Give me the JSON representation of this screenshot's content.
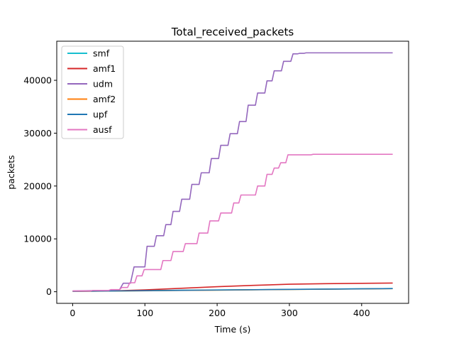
{
  "chart_data": {
    "type": "line",
    "title": "Total_received_packets",
    "xlabel": "Time (s)",
    "ylabel": "packets",
    "xlim": [
      -22,
      465
    ],
    "ylim": [
      -2200,
      47400
    ],
    "xticks": [
      0,
      100,
      200,
      300,
      400
    ],
    "yticks": [
      0,
      10000,
      20000,
      30000,
      40000
    ],
    "grid": false,
    "legend_position": "top-left",
    "series": [
      {
        "name": "smf",
        "color": "#17becf",
        "x": [
          0,
          100,
          200,
          300,
          443
        ],
        "y": [
          80,
          220,
          330,
          430,
          600
        ]
      },
      {
        "name": "amf1",
        "color": "#d62728",
        "x": [
          0,
          60,
          100,
          150,
          200,
          250,
          300,
          350,
          400,
          443
        ],
        "y": [
          100,
          180,
          350,
          650,
          950,
          1200,
          1420,
          1520,
          1590,
          1640
        ]
      },
      {
        "name": "udm",
        "color": "#9467bd",
        "x": [
          0,
          50,
          65,
          70,
          75,
          80,
          85,
          100,
          103,
          113,
          116,
          126,
          129,
          136,
          139,
          148,
          151,
          162,
          165,
          175,
          178,
          189,
          192,
          202,
          205,
          215,
          218,
          228,
          231,
          240,
          243,
          253,
          256,
          266,
          269,
          276,
          279,
          289,
          292,
          302,
          305,
          311,
          314,
          320,
          323,
          330,
          443
        ],
        "y": [
          150,
          250,
          400,
          1600,
          1600,
          1600,
          4700,
          4700,
          8600,
          8600,
          10600,
          10600,
          12700,
          12700,
          15200,
          15200,
          17500,
          17500,
          20300,
          20300,
          22500,
          22500,
          25200,
          25200,
          27700,
          27700,
          29900,
          29900,
          32200,
          32200,
          35300,
          35300,
          37600,
          37600,
          39900,
          39900,
          41800,
          41800,
          43600,
          43600,
          45000,
          45000,
          45100,
          45100,
          45200,
          45200,
          45200
        ]
      },
      {
        "name": "amf2",
        "color": "#ff7f0e",
        "x": [
          0,
          100,
          200,
          300,
          443
        ],
        "y": [
          60,
          180,
          300,
          420,
          580
        ]
      },
      {
        "name": "upf",
        "color": "#1f77b4",
        "x": [
          0,
          100,
          200,
          300,
          443
        ],
        "y": [
          70,
          200,
          320,
          440,
          600
        ]
      },
      {
        "name": "ausf",
        "color": "#e377c2",
        "x": [
          0,
          25,
          28,
          50,
          53,
          65,
          68,
          76,
          79,
          86,
          89,
          96,
          99,
          108,
          111,
          122,
          125,
          136,
          139,
          153,
          156,
          172,
          175,
          187,
          190,
          202,
          205,
          220,
          223,
          230,
          233,
          253,
          256,
          266,
          269,
          276,
          279,
          285,
          288,
          295,
          298,
          330,
          333,
          443
        ],
        "y": [
          150,
          150,
          250,
          250,
          400,
          400,
          800,
          800,
          1700,
          1700,
          3000,
          3000,
          4200,
          4200,
          4200,
          4200,
          5900,
          5900,
          7600,
          7600,
          9100,
          9100,
          11100,
          11100,
          13400,
          13400,
          14900,
          14900,
          16800,
          16800,
          18300,
          18300,
          20000,
          20000,
          22200,
          22200,
          23400,
          23400,
          24400,
          24400,
          25900,
          25900,
          26000,
          26000
        ]
      }
    ]
  }
}
